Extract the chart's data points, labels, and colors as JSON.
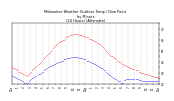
{
  "title": "Milwaukee Weather Outdoor Temp / Dew Point\nby Minute\n(24 Hours) (Alternate)",
  "temp_color": "#ff0000",
  "dewpoint_color": "#0000ff",
  "background_color": "#ffffff",
  "grid_color": "#aaaaaa",
  "ylim": [
    20,
    75
  ],
  "yticks": [
    20,
    25,
    30,
    35,
    40,
    45,
    50,
    55,
    60,
    65,
    70,
    75
  ],
  "ytick_labels": [
    "20",
    "",
    "30",
    "",
    "40",
    "",
    "50",
    "",
    "60",
    "",
    "70",
    ""
  ],
  "xlim": [
    0,
    1440
  ],
  "xtick_positions": [
    0,
    60,
    120,
    180,
    240,
    300,
    360,
    420,
    480,
    540,
    600,
    660,
    720,
    780,
    840,
    900,
    960,
    1020,
    1080,
    1140,
    1200,
    1260,
    1320,
    1380,
    1440
  ],
  "xtick_labels": [
    "12a",
    "1",
    "2",
    "3",
    "4",
    "5",
    "6",
    "7",
    "8",
    "9",
    "10",
    "11",
    "12p",
    "1",
    "2",
    "3",
    "4",
    "5",
    "6",
    "7",
    "8",
    "9",
    "10",
    "11",
    "12a"
  ],
  "temp_x": [
    0,
    10,
    20,
    30,
    40,
    50,
    60,
    70,
    80,
    90,
    100,
    110,
    120,
    130,
    140,
    150,
    160,
    170,
    180,
    190,
    200,
    210,
    220,
    230,
    240,
    250,
    260,
    270,
    280,
    290,
    300,
    310,
    320,
    330,
    340,
    350,
    360,
    370,
    380,
    390,
    400,
    410,
    420,
    430,
    440,
    450,
    460,
    470,
    480,
    490,
    500,
    510,
    520,
    530,
    540,
    550,
    560,
    570,
    580,
    590,
    600,
    610,
    620,
    630,
    640,
    650,
    660,
    670,
    680,
    690,
    700,
    710,
    720,
    730,
    740,
    750,
    760,
    770,
    780,
    790,
    800,
    810,
    820,
    830,
    840,
    850,
    860,
    870,
    880,
    890,
    900,
    910,
    920,
    930,
    940,
    950,
    960,
    970,
    980,
    990,
    1000,
    1010,
    1020,
    1030,
    1040,
    1050,
    1060,
    1070,
    1080,
    1090,
    1100,
    1110,
    1120,
    1130,
    1140,
    1150,
    1160,
    1170,
    1180,
    1190,
    1200,
    1210,
    1220,
    1230,
    1240,
    1250,
    1260,
    1270,
    1280,
    1290,
    1300,
    1310,
    1320,
    1330,
    1340,
    1350,
    1360,
    1370,
    1380,
    1390,
    1400,
    1410,
    1420,
    1430
  ],
  "temp_y": [
    35,
    34,
    34,
    33,
    33,
    32,
    32,
    31,
    31,
    30,
    30,
    29,
    29,
    28,
    28,
    27,
    28,
    29,
    30,
    31,
    32,
    33,
    34,
    35,
    36,
    37,
    38,
    39,
    40,
    41,
    42,
    43,
    44,
    45,
    46,
    47,
    48,
    49,
    50,
    51,
    52,
    53,
    54,
    55,
    56,
    57,
    58,
    58,
    59,
    59,
    60,
    60,
    61,
    62,
    62,
    63,
    63,
    64,
    64,
    64,
    65,
    65,
    65,
    65,
    65,
    65,
    64,
    64,
    64,
    64,
    63,
    63,
    62,
    62,
    62,
    61,
    61,
    61,
    60,
    60,
    59,
    59,
    58,
    57,
    57,
    56,
    56,
    55,
    54,
    53,
    52,
    51,
    50,
    49,
    48,
    47,
    46,
    45,
    45,
    44,
    43,
    43,
    42,
    41,
    41,
    40,
    40,
    39,
    38,
    38,
    37,
    37,
    36,
    36,
    35,
    35,
    34,
    34,
    33,
    33,
    33,
    32,
    32,
    32,
    31,
    31,
    30,
    30,
    30,
    29,
    29,
    29,
    29,
    28,
    28,
    28,
    27,
    27,
    27,
    26,
    26,
    26,
    26,
    25
  ],
  "dewpoint_x": [
    0,
    10,
    20,
    30,
    40,
    50,
    60,
    70,
    80,
    90,
    100,
    110,
    120,
    130,
    140,
    150,
    160,
    170,
    180,
    190,
    200,
    210,
    220,
    230,
    240,
    250,
    260,
    270,
    280,
    290,
    300,
    310,
    320,
    330,
    340,
    350,
    360,
    370,
    380,
    390,
    400,
    410,
    420,
    430,
    440,
    450,
    460,
    470,
    480,
    490,
    500,
    510,
    520,
    530,
    540,
    550,
    560,
    570,
    580,
    590,
    600,
    610,
    620,
    630,
    640,
    650,
    660,
    670,
    680,
    690,
    700,
    710,
    720,
    730,
    740,
    750,
    760,
    770,
    780,
    790,
    800,
    810,
    820,
    830,
    840,
    850,
    860,
    870,
    880,
    890,
    900,
    910,
    920,
    930,
    940,
    950,
    960,
    970,
    980,
    990,
    1000,
    1010,
    1020,
    1030,
    1040,
    1050,
    1060,
    1070,
    1080,
    1090,
    1100,
    1110,
    1120,
    1130,
    1140,
    1150,
    1160,
    1170,
    1180,
    1190,
    1200,
    1210,
    1220,
    1230,
    1240,
    1250,
    1260,
    1270,
    1280,
    1290,
    1300,
    1310,
    1320,
    1330,
    1340,
    1350,
    1360,
    1370,
    1380,
    1390,
    1400,
    1410,
    1420,
    1430
  ],
  "dewpoint_y": [
    27,
    27,
    26,
    26,
    25,
    25,
    24,
    24,
    23,
    23,
    22,
    22,
    21,
    21,
    21,
    20,
    21,
    22,
    23,
    24,
    25,
    25,
    26,
    27,
    27,
    28,
    29,
    29,
    30,
    31,
    31,
    32,
    33,
    33,
    34,
    35,
    35,
    36,
    36,
    37,
    37,
    38,
    38,
    39,
    39,
    40,
    40,
    40,
    41,
    41,
    41,
    42,
    42,
    42,
    43,
    43,
    43,
    43,
    44,
    44,
    44,
    44,
    44,
    44,
    44,
    44,
    43,
    43,
    43,
    43,
    42,
    42,
    42,
    41,
    41,
    41,
    40,
    40,
    39,
    39,
    38,
    38,
    37,
    37,
    36,
    35,
    35,
    34,
    34,
    33,
    32,
    32,
    31,
    30,
    29,
    28,
    28,
    27,
    26,
    25,
    25,
    24,
    24,
    23,
    22,
    22,
    22,
    21,
    21,
    21,
    23,
    23,
    24,
    24,
    24,
    24,
    24,
    24,
    24,
    24,
    24,
    24,
    24,
    24,
    23,
    23,
    23,
    22,
    22,
    22,
    22,
    22,
    22,
    22,
    22,
    22,
    22,
    22,
    22,
    22,
    22,
    22,
    22,
    22
  ]
}
